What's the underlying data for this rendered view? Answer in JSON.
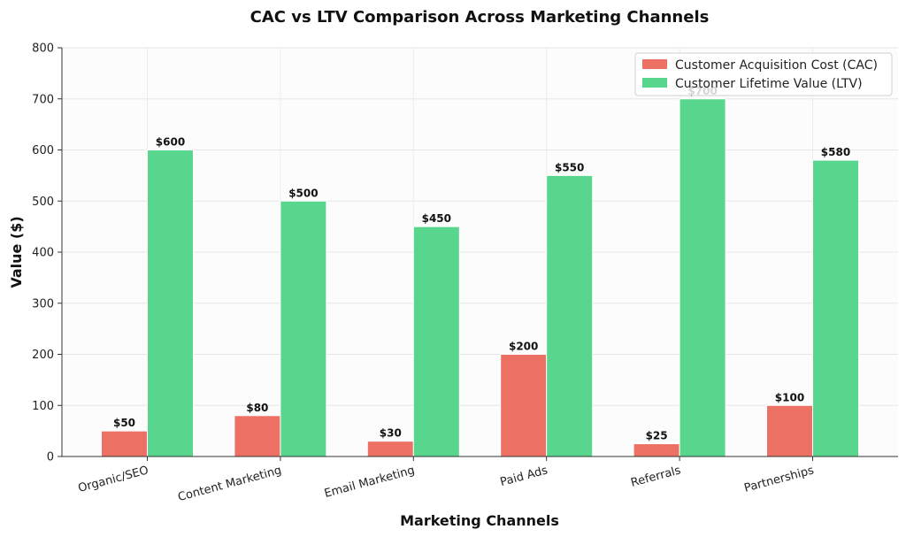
{
  "chart_data": {
    "type": "bar",
    "title": "CAC vs LTV Comparison Across Marketing Channels",
    "xlabel": "Marketing Channels",
    "ylabel": "Value ($)",
    "ylim": [
      0,
      800
    ],
    "yticks": [
      0,
      100,
      200,
      300,
      400,
      500,
      600,
      700,
      800
    ],
    "categories": [
      "Organic/SEO",
      "Content Marketing",
      "Email Marketing",
      "Paid Ads",
      "Referrals",
      "Partnerships"
    ],
    "series": [
      {
        "name": "Customer Acquisition Cost (CAC)",
        "color": "#ec7063",
        "values": [
          50,
          80,
          30,
          200,
          25,
          100
        ],
        "labels": [
          "$50",
          "$80",
          "$30",
          "$200",
          "$25",
          "$100"
        ]
      },
      {
        "name": "Customer Lifetime Value (LTV)",
        "color": "#58d68d",
        "values": [
          600,
          500,
          450,
          550,
          700,
          580
        ],
        "labels": [
          "$600",
          "$500",
          "$450",
          "$550",
          "$700",
          "$580"
        ]
      }
    ],
    "grid": true,
    "legend_position": "top-right"
  }
}
